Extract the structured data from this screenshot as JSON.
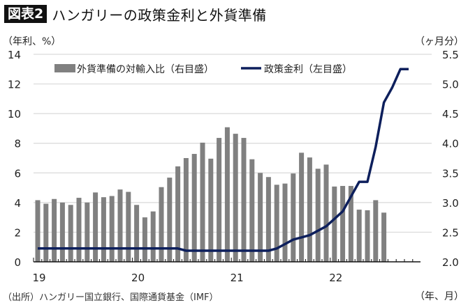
{
  "header": {
    "badge": "図表2",
    "title": "ハンガリーの政策金利と外貨準備"
  },
  "axes": {
    "left_unit": "（年利、%）",
    "right_unit": "（ヶ月分）",
    "x_unit": "（年、月）",
    "left_ticks": [
      "0",
      "2",
      "4",
      "6",
      "8",
      "10",
      "12",
      "14"
    ],
    "right_ticks": [
      "2.0",
      "2.5",
      "3.0",
      "3.5",
      "4.0",
      "4.5",
      "5.0",
      "5.5"
    ],
    "x_ticks": [
      "19",
      "20",
      "21",
      "22"
    ]
  },
  "legend": {
    "bar_label": "外貨準備の対輸入比（右目盛）",
    "line_label": "政策金利（左目盛）"
  },
  "footer": {
    "source": "（出所）ハンガリー国立銀行、国際通貨基金（IMF）"
  },
  "colors": {
    "bar": "#808080",
    "line": "#0d1f5c",
    "grid": "#d9d9d9"
  },
  "chart_data": {
    "type": "bar+line",
    "title": "ハンガリーの政策金利と外貨準備",
    "xlabel": "（年、月）",
    "ylabel_left": "（年利、%）",
    "ylabel_right": "（ヶ月分）",
    "ylim_left": [
      0,
      14
    ],
    "ylim_right": [
      2.0,
      5.5
    ],
    "grid": true,
    "legend_position": "top",
    "x": [
      "2019-01",
      "2019-02",
      "2019-03",
      "2019-04",
      "2019-05",
      "2019-06",
      "2019-07",
      "2019-08",
      "2019-09",
      "2019-10",
      "2019-11",
      "2019-12",
      "2020-01",
      "2020-02",
      "2020-03",
      "2020-04",
      "2020-05",
      "2020-06",
      "2020-07",
      "2020-08",
      "2020-09",
      "2020-10",
      "2020-11",
      "2020-12",
      "2021-01",
      "2021-02",
      "2021-03",
      "2021-04",
      "2021-05",
      "2021-06",
      "2021-07",
      "2021-08",
      "2021-09",
      "2021-10",
      "2021-11",
      "2021-12",
      "2022-01",
      "2022-02",
      "2022-03",
      "2022-04",
      "2022-05",
      "2022-06",
      "2022-07",
      "2022-08",
      "2022-09",
      "2022-10"
    ],
    "series": [
      {
        "name": "外貨準備の対輸入比（右目盛）",
        "type": "bar",
        "axis": "right",
        "values": [
          3.04,
          2.98,
          3.06,
          3.0,
          2.96,
          3.08,
          3.0,
          3.17,
          3.09,
          3.11,
          3.22,
          3.18,
          2.96,
          2.75,
          2.85,
          3.26,
          3.42,
          3.61,
          3.75,
          3.82,
          4.01,
          3.74,
          4.09,
          4.27,
          4.16,
          4.09,
          3.73,
          3.5,
          3.43,
          3.3,
          3.32,
          3.49,
          3.84,
          3.76,
          3.57,
          3.64,
          3.27,
          3.28,
          3.28,
          2.88,
          2.87,
          3.04,
          2.83,
          null,
          null,
          null
        ]
      },
      {
        "name": "政策金利（左目盛）",
        "type": "line",
        "axis": "left",
        "values": [
          0.9,
          0.9,
          0.9,
          0.9,
          0.9,
          0.9,
          0.9,
          0.9,
          0.9,
          0.9,
          0.9,
          0.9,
          0.9,
          0.9,
          0.9,
          0.9,
          0.9,
          0.9,
          0.75,
          0.75,
          0.75,
          0.75,
          0.75,
          0.75,
          0.75,
          0.75,
          0.75,
          0.75,
          0.75,
          0.9,
          1.2,
          1.5,
          1.65,
          1.8,
          2.1,
          2.4,
          2.9,
          3.4,
          4.4,
          5.4,
          5.4,
          7.75,
          10.75,
          11.75,
          13.0,
          13.0
        ]
      }
    ]
  }
}
